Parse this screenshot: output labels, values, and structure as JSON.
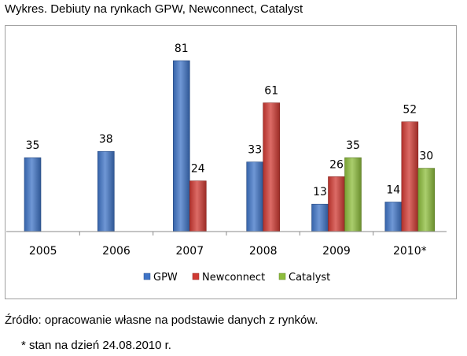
{
  "caption": "Wykres. Debiuty na rynkach GPW, Newconnect, Catalyst",
  "source_note": "Źródło: opracowanie własne na podstawie danych z rynków.",
  "footnote": "* stan na dzień 24.08.2010 r.",
  "chart_data": {
    "type": "bar",
    "title": "",
    "xlabel": "",
    "ylabel": "",
    "categories": [
      "2005",
      "2006",
      "2007",
      "2008",
      "2009",
      "2010*"
    ],
    "ylim": [
      0,
      81
    ],
    "grid": false,
    "legend_position": "bottom",
    "series": [
      {
        "name": "GPW",
        "color": "#3f74c7",
        "values": [
          35,
          38,
          81,
          33,
          13,
          14
        ]
      },
      {
        "name": "Newconnect",
        "color": "#d03a33",
        "values": [
          null,
          null,
          24,
          61,
          26,
          52
        ]
      },
      {
        "name": "Catalyst",
        "color": "#8dbd3c",
        "values": [
          null,
          null,
          null,
          null,
          35,
          30
        ]
      }
    ]
  }
}
